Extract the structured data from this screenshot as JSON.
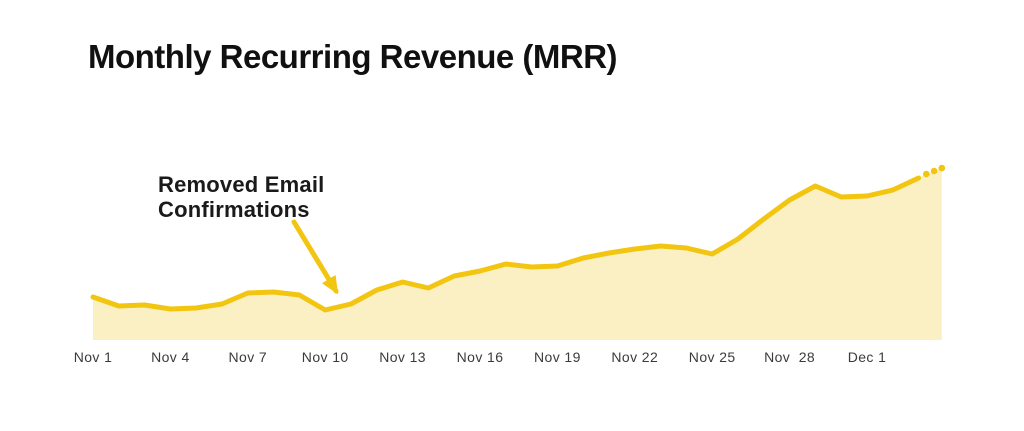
{
  "header": {
    "title": "Monthly Recurring Revenue (MRR)"
  },
  "annotation": {
    "line1": "Removed Email",
    "line2": "Confirmations",
    "arrow_points_to": "dip at Nov 10"
  },
  "colors": {
    "line": "#F2C511",
    "area_fill": "#FBF0C4",
    "title_text": "#101010",
    "annotation_text": "#1A1A1A",
    "axis_label_text": "#3B3B3B",
    "background": "#FFFFFF"
  },
  "x_axis": {
    "tick_labels": [
      "Nov 1",
      "Nov 4",
      "Nov 7",
      "Nov 10",
      "Nov 13",
      "Nov 16",
      "Nov 19",
      "Nov 22",
      "Nov 25",
      "Nov  28",
      "Dec 1"
    ],
    "tick_day_indices": [
      0,
      3,
      6,
      9,
      12,
      15,
      18,
      21,
      24,
      27,
      30
    ]
  },
  "chart_data": {
    "type": "area",
    "title": "Monthly Recurring Revenue (MRR)",
    "xlabel": "",
    "ylabel": "",
    "grid": false,
    "legend": false,
    "y_axis": "unlabeled - values are a relative MRR index (pixel-height units above baseline)",
    "ylim": [
      0,
      190
    ],
    "categories": [
      "Nov 1",
      "Nov 2",
      "Nov 3",
      "Nov 4",
      "Nov 5",
      "Nov 6",
      "Nov 7",
      "Nov 8",
      "Nov 9",
      "Nov 10",
      "Nov 11",
      "Nov 12",
      "Nov 13",
      "Nov 14",
      "Nov 15",
      "Nov 16",
      "Nov 17",
      "Nov 18",
      "Nov 19",
      "Nov 20",
      "Nov 21",
      "Nov 22",
      "Nov 23",
      "Nov 24",
      "Nov 25",
      "Nov 26",
      "Nov 27",
      "Nov 28",
      "Nov 29",
      "Nov 30",
      "Dec 1",
      "Dec 2",
      "Dec 3"
    ],
    "values": [
      43,
      34,
      35,
      31,
      32,
      36,
      47,
      48,
      45,
      30,
      36,
      50,
      58,
      52,
      64,
      69,
      76,
      73,
      74,
      82,
      87,
      91,
      94,
      92,
      86,
      101,
      121,
      140,
      154,
      143,
      144,
      150,
      162
    ],
    "projection": {
      "style": "dotted",
      "day_offsets_after_last": [
        0.3,
        0.6,
        0.9
      ],
      "values": [
        166,
        169,
        172
      ]
    },
    "annotations": [
      {
        "text": "Removed Email Confirmations",
        "target_category": "Nov 10",
        "note": "yellow arrow pointing to the local dip at Nov 10"
      }
    ]
  }
}
